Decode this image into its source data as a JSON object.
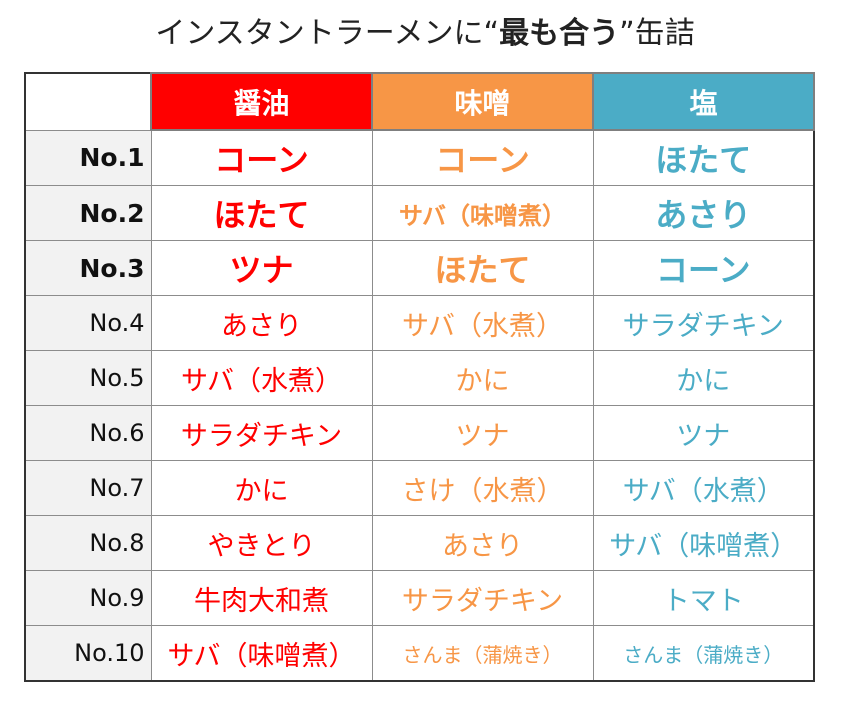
{
  "title": {
    "pre": "インスタントラーメンに“",
    "bold": "最も合う",
    "post": "”缶詰"
  },
  "headers": [
    "醤油",
    "味噌",
    "塩"
  ],
  "colors": {
    "shoyu": "#ff0000",
    "miso": "#f79646",
    "shio": "#4bacc6"
  },
  "rows": [
    {
      "rank": "No.1",
      "cells": [
        "コーン",
        "コーン",
        "ほたて"
      ]
    },
    {
      "rank": "No.2",
      "cells": [
        "ほたて",
        "サバ（味噌煮）",
        "あさり"
      ]
    },
    {
      "rank": "No.3",
      "cells": [
        "ツナ",
        "ほたて",
        "コーン"
      ]
    },
    {
      "rank": "No.4",
      "cells": [
        "あさり",
        "サバ（水煮）",
        "サラダチキン"
      ]
    },
    {
      "rank": "No.5",
      "cells": [
        "サバ（水煮）",
        "かに",
        "かに"
      ]
    },
    {
      "rank": "No.6",
      "cells": [
        "サラダチキン",
        "ツナ",
        "ツナ"
      ]
    },
    {
      "rank": "No.7",
      "cells": [
        "かに",
        "さけ（水煮）",
        "サバ（水煮）"
      ]
    },
    {
      "rank": "No.8",
      "cells": [
        "やきとり",
        "あさり",
        "サバ（味噌煮）"
      ]
    },
    {
      "rank": "No.9",
      "cells": [
        "牛肉大和煮",
        "サラダチキン",
        "トマト"
      ]
    },
    {
      "rank": "No.10",
      "cells": [
        "サバ（味噌煮）",
        "さんま（蒲焼き）",
        "さんま（蒲焼き）"
      ]
    }
  ]
}
